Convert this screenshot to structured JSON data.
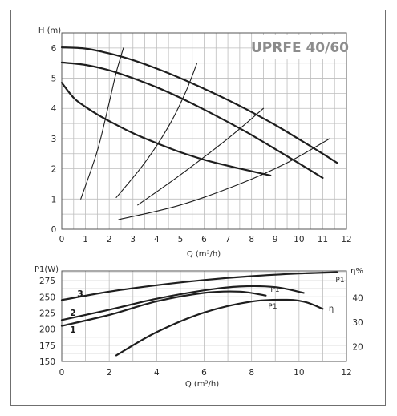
{
  "chart_data": [
    {
      "type": "line",
      "title": "UPRFE 40/60",
      "xlabel": "Q (m³/h)",
      "ylabel": "H (m)",
      "xlim": [
        0,
        12
      ],
      "ylim": [
        0,
        6.5
      ],
      "x_ticks": [
        "0",
        "1",
        "2",
        "3",
        "4",
        "5",
        "6",
        "7",
        "8",
        "9",
        "10",
        "11",
        "12"
      ],
      "y_ticks": [
        "0",
        "1",
        "2",
        "3",
        "4",
        "5",
        "6"
      ],
      "grid": true,
      "series": [
        {
          "x": [
            0,
            1,
            2,
            3,
            4,
            5,
            6,
            7,
            8,
            9,
            10,
            11,
            11.6
          ],
          "y": [
            6.02,
            5.98,
            5.82,
            5.6,
            5.32,
            5.0,
            4.65,
            4.28,
            3.88,
            3.45,
            2.98,
            2.5,
            2.2
          ]
        },
        {
          "x": [
            0,
            1,
            2,
            3,
            4,
            5,
            6,
            7,
            8,
            9,
            10,
            11
          ],
          "y": [
            5.52,
            5.44,
            5.26,
            5.0,
            4.7,
            4.35,
            3.96,
            3.55,
            3.12,
            2.65,
            2.18,
            1.7
          ]
        },
        {
          "x": [
            0,
            0.5,
            1,
            1.5,
            2,
            3,
            4,
            5,
            6,
            7,
            8,
            8.8
          ],
          "y": [
            4.85,
            4.35,
            4.05,
            3.8,
            3.58,
            3.18,
            2.85,
            2.55,
            2.3,
            2.1,
            1.92,
            1.78
          ]
        },
        {
          "x": [
            0.8,
            1.5,
            2.0,
            2.3,
            2.6
          ],
          "y": [
            1.0,
            2.6,
            4.2,
            5.2,
            6.0
          ]
        },
        {
          "x": [
            2.3,
            3.5,
            4.5,
            5.2,
            5.7
          ],
          "y": [
            1.05,
            2.2,
            3.4,
            4.5,
            5.5
          ]
        },
        {
          "x": [
            3.2,
            5.0,
            7.0,
            8.5
          ],
          "y": [
            0.8,
            1.8,
            3.0,
            4.0
          ]
        },
        {
          "x": [
            2.4,
            5.0,
            7.5,
            9.5,
            11.3
          ],
          "y": [
            0.32,
            0.8,
            1.5,
            2.2,
            3.0
          ]
        }
      ]
    },
    {
      "type": "line",
      "xlabel": "Q (m³/h)",
      "ylabel": "P1(W)",
      "ylabel_right": "η%",
      "xlim": [
        0,
        12
      ],
      "ylim": [
        150,
        290
      ],
      "x_ticks": [
        "0",
        "2",
        "4",
        "6",
        "8",
        "10",
        "12"
      ],
      "y_ticks": [
        "150",
        "175",
        "200",
        "225",
        "250",
        "275"
      ],
      "y2_ticks": [
        "20",
        "30",
        "40"
      ],
      "y2lim": [
        14,
        51
      ],
      "grid": true,
      "curve_labels": [
        "1",
        "2",
        "3",
        "P1",
        "P1",
        "P1",
        "η"
      ],
      "series": [
        {
          "name": "3",
          "x": [
            0,
            2,
            4,
            6,
            8,
            10,
            11.6
          ],
          "y": [
            245,
            258,
            268,
            276,
            282,
            286,
            288
          ]
        },
        {
          "name": "2",
          "x": [
            0,
            2,
            4,
            6,
            7.5,
            9,
            10.2
          ],
          "y": [
            214,
            230,
            247,
            260,
            266,
            265,
            256
          ]
        },
        {
          "name": "1",
          "x": [
            0,
            2,
            4,
            6,
            7.5,
            8.6
          ],
          "y": [
            205,
            222,
            243,
            256,
            258,
            252
          ]
        },
        {
          "name": "η",
          "axis": "right",
          "x": [
            2.3,
            4,
            6,
            8,
            9.5,
            10.3,
            11
          ],
          "y": [
            16.5,
            26,
            34,
            38.5,
            39.2,
            38.2,
            35.5
          ]
        }
      ]
    }
  ]
}
